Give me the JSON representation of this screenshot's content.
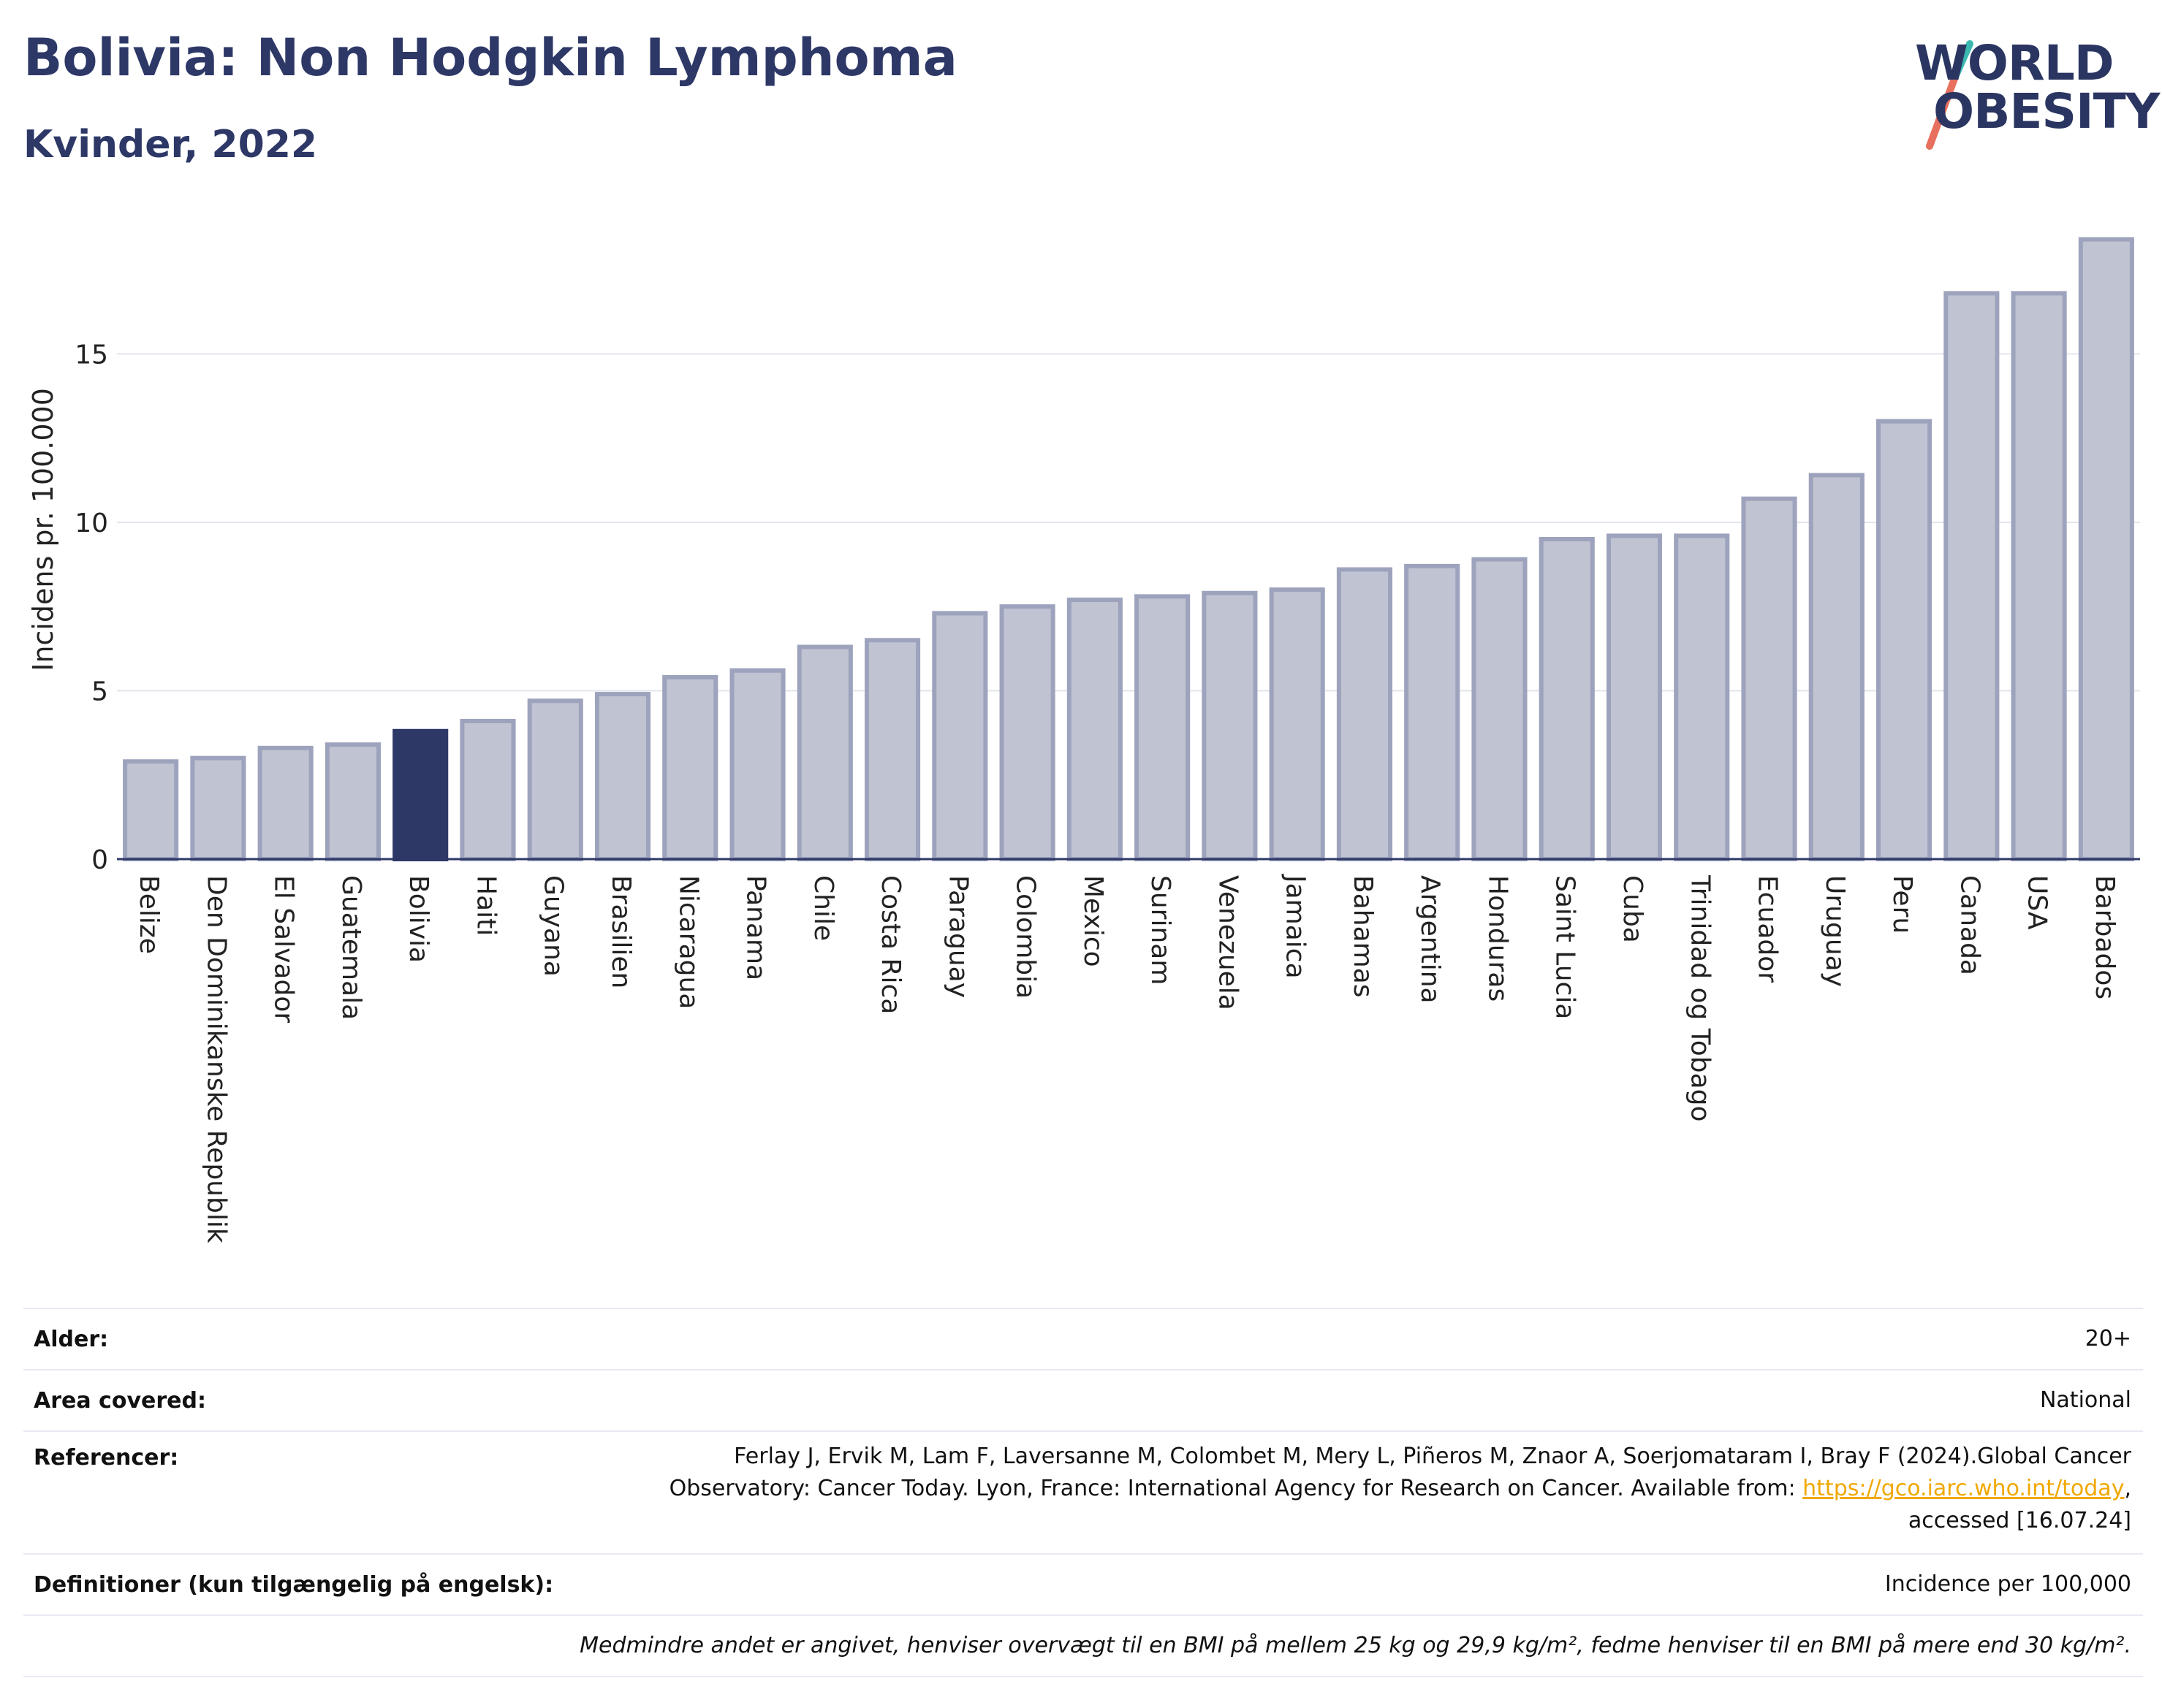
{
  "header": {
    "title": "Bolivia: Non Hodgkin Lymphoma",
    "subtitle": "Kvinder, 2022"
  },
  "logo": {
    "line1": "WORLD",
    "line2": "OBESITY",
    "colors": {
      "text": "#2a3561",
      "slash_top": "#3bb8b0",
      "slash_bottom": "#e8705e"
    }
  },
  "chart_data": {
    "type": "bar",
    "ylabel": "Incidens pr. 100.000",
    "xlabel": "",
    "ylim": [
      0,
      19
    ],
    "yticks": [
      0,
      5,
      10,
      15
    ],
    "grid": true,
    "highlight": "Bolivia",
    "colors": {
      "bar": "#bfc3d2",
      "bar_border": "#9ea3bd",
      "highlight": "#2d3867"
    },
    "categories": [
      "Belize",
      "Den Dominikanske Republik",
      "El Salvador",
      "Guatemala",
      "Bolivia",
      "Haiti",
      "Guyana",
      "Brasilien",
      "Nicaragua",
      "Panama",
      "Chile",
      "Costa Rica",
      "Paraguay",
      "Colombia",
      "Mexico",
      "Surinam",
      "Venezuela",
      "Jamaica",
      "Bahamas",
      "Argentina",
      "Honduras",
      "Saint Lucia",
      "Cuba",
      "Trinidad og Tobago",
      "Ecuador",
      "Uruguay",
      "Peru",
      "Canada",
      "USA",
      "Barbados"
    ],
    "values": [
      2.9,
      3.0,
      3.3,
      3.4,
      3.8,
      4.1,
      4.7,
      4.9,
      5.4,
      5.6,
      6.3,
      6.5,
      7.3,
      7.5,
      7.7,
      7.8,
      7.9,
      8.0,
      8.6,
      8.7,
      8.9,
      9.5,
      9.6,
      9.6,
      10.7,
      11.4,
      13.0,
      16.8,
      16.8,
      18.4
    ]
  },
  "info": {
    "age_label": "Alder:",
    "age_value": "20+",
    "area_label": "Area covered:",
    "area_value": "National",
    "refs_label": "Referencer:",
    "refs_line1": "Ferlay J, Ervik M, Lam F, Laversanne M, Colombet M, Mery L, Piñeros M, Znaor A, Soerjomataram I, Bray F (2024).Global Cancer",
    "refs_line2": "Observatory: Cancer Today. Lyon, France: International Agency for Research on Cancer. Available from: ",
    "refs_link": "https://gco.iarc.who.int/today",
    "refs_line2_end": ",",
    "refs_line3": "accessed [16.07.24]",
    "defs_label": "Definitioner (kun tilgængelig på engelsk):",
    "defs_value": "Incidence per 100,000",
    "note": "Medmindre andet er angivet, henviser overvægt til en BMI på mellem 25 kg og 29,9 kg/m², fedme henviser til en BMI på mere end 30 kg/m²."
  }
}
